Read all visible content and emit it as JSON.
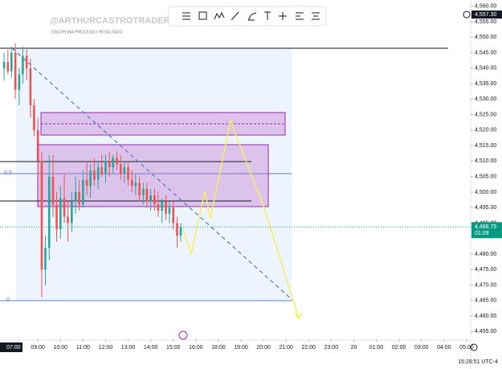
{
  "chart_data": {
    "type": "candlestick",
    "watermark": "@ARTHURCASTROTRADER",
    "watermark_subtitle": "DISCIPLINA   PROCESSO   RESULTADO",
    "crosshair_time": "07:00",
    "clock": "15:28:51 UTC-4",
    "x": [
      7.5,
      7.67,
      7.83,
      8,
      8.17,
      8.33,
      8.5,
      8.67,
      8.83,
      9,
      9.17,
      9.33,
      9.5,
      9.67,
      9.83,
      10,
      10.17,
      10.33,
      10.5,
      10.67,
      10.83,
      11,
      11.17,
      11.33,
      11.5,
      11.67,
      11.83,
      12,
      12.17,
      12.33,
      12.5,
      12.67,
      12.83,
      13,
      13.17,
      13.33,
      13.5,
      13.67,
      13.83,
      14,
      14.17,
      14.33,
      14.5,
      14.67,
      14.83,
      15,
      15.17,
      15.33
    ],
    "open": [
      4540,
      4542,
      4539,
      4545,
      4533,
      4538,
      4544,
      4540,
      4528,
      4520,
      4510,
      4475,
      4482,
      4505,
      4496,
      4488,
      4498,
      4492,
      4490,
      4497,
      4500,
      4496,
      4504,
      4502,
      4507,
      4504,
      4508,
      4506,
      4510,
      4508,
      4511,
      4509,
      4506,
      4508,
      4504,
      4502,
      4503,
      4499,
      4501,
      4497,
      4499,
      4496,
      4494,
      4497,
      4493,
      4495,
      4490,
      4486
    ],
    "high": [
      4545,
      4546,
      4547,
      4548,
      4540,
      4547,
      4546,
      4543,
      4530,
      4524,
      4513,
      4486,
      4512,
      4512,
      4500,
      4502,
      4506,
      4497,
      4500,
      4505,
      4504,
      4507,
      4510,
      4509,
      4511,
      4510,
      4512,
      4512,
      4513,
      4512,
      4513,
      4512,
      4510,
      4510,
      4507,
      4506,
      4505,
      4503,
      4503,
      4501,
      4501,
      4500,
      4498,
      4499,
      4497,
      4497,
      4492,
      4490
    ],
    "low": [
      4536,
      4538,
      4537,
      4530,
      4528,
      4535,
      4536,
      4524,
      4518,
      4505,
      4466,
      4470,
      4478,
      4492,
      4484,
      4485,
      4490,
      4484,
      4487,
      4493,
      4494,
      4495,
      4499,
      4498,
      4502,
      4501,
      4505,
      4503,
      4505,
      4506,
      4507,
      4504,
      4503,
      4502,
      4500,
      4499,
      4497,
      4496,
      4495,
      4494,
      4494,
      4492,
      4490,
      4491,
      4490,
      4488,
      4482,
      4484
    ],
    "close": [
      4542,
      4539,
      4545,
      4533,
      4538,
      4544,
      4540,
      4528,
      4520,
      4510,
      4475,
      4482,
      4505,
      4496,
      4488,
      4498,
      4492,
      4490,
      4497,
      4500,
      4496,
      4504,
      4502,
      4507,
      4504,
      4508,
      4506,
      4510,
      4508,
      4511,
      4509,
      4506,
      4508,
      4504,
      4502,
      4503,
      4499,
      4501,
      4497,
      4499,
      4496,
      4494,
      4497,
      4493,
      4495,
      4490,
      4486,
      4488.75
    ],
    "up_color": "#26a69a",
    "down_color": "#ef5350",
    "session_break": [
      17,
      18
    ],
    "xlim": [
      7.32,
      29.18
    ],
    "xticks": [
      {
        "value": 9,
        "label": "09:00"
      },
      {
        "value": 10,
        "label": "10:00"
      },
      {
        "value": 11,
        "label": "11:00"
      },
      {
        "value": 12,
        "label": "12:00"
      },
      {
        "value": 13,
        "label": "13:00"
      },
      {
        "value": 14,
        "label": "14:00"
      },
      {
        "value": 15,
        "label": "15:00"
      },
      {
        "value": 16,
        "label": "16:00"
      },
      {
        "value": 18,
        "label": "18:00"
      },
      {
        "value": 19,
        "label": "19:00"
      },
      {
        "value": 20,
        "label": "20:00"
      },
      {
        "value": 21,
        "label": "21:00"
      },
      {
        "value": 22,
        "label": "22:00"
      },
      {
        "value": 23,
        "label": "23:00"
      },
      {
        "value": 24,
        "label": "20"
      },
      {
        "value": 25,
        "label": "01:00"
      },
      {
        "value": 26,
        "label": "02:00"
      },
      {
        "value": 27,
        "label": "03:00"
      },
      {
        "value": 28,
        "label": "04:00"
      },
      {
        "value": 29,
        "label": "05:00"
      }
    ],
    "ylim": [
      4452.5,
      4562
    ],
    "yticks": [
      {
        "value": 4560,
        "label": "4,560.00"
      },
      {
        "value": 4555,
        "label": "4,555.00"
      },
      {
        "value": 4550,
        "label": "4,550.00"
      },
      {
        "value": 4545,
        "label": "4,545.00"
      },
      {
        "value": 4540,
        "label": "4,540.00"
      },
      {
        "value": 4535,
        "label": "4,535.00"
      },
      {
        "value": 4530,
        "label": "4,530.00"
      },
      {
        "value": 4525,
        "label": "4,525.00"
      },
      {
        "value": 4520,
        "label": "4,520.00"
      },
      {
        "value": 4515,
        "label": "4,515.00"
      },
      {
        "value": 4510,
        "label": "4,510.00"
      },
      {
        "value": 4505,
        "label": "4,505.00"
      },
      {
        "value": 4500,
        "label": "4,500.00"
      },
      {
        "value": 4495,
        "label": "4,495.00"
      },
      {
        "value": 4490,
        "label": "4,490.00"
      },
      {
        "value": 4480,
        "label": "4,480.00"
      },
      {
        "value": 4475,
        "label": "4,475.00"
      },
      {
        "value": 4470,
        "label": "4,470.00"
      },
      {
        "value": 4465,
        "label": "4,465.00"
      },
      {
        "value": 4460,
        "label": "4,460.00"
      },
      {
        "value": 4455,
        "label": "4,455.00"
      }
    ],
    "last_price": {
      "value": 4488.75,
      "label": "4,488.75"
    },
    "last_price_color": "#089981",
    "countdown": "01:09",
    "high_marker": {
      "value": 4557.3,
      "label": "4,557.30"
    },
    "fib_labels": [
      0.5,
      0
    ]
  }
}
